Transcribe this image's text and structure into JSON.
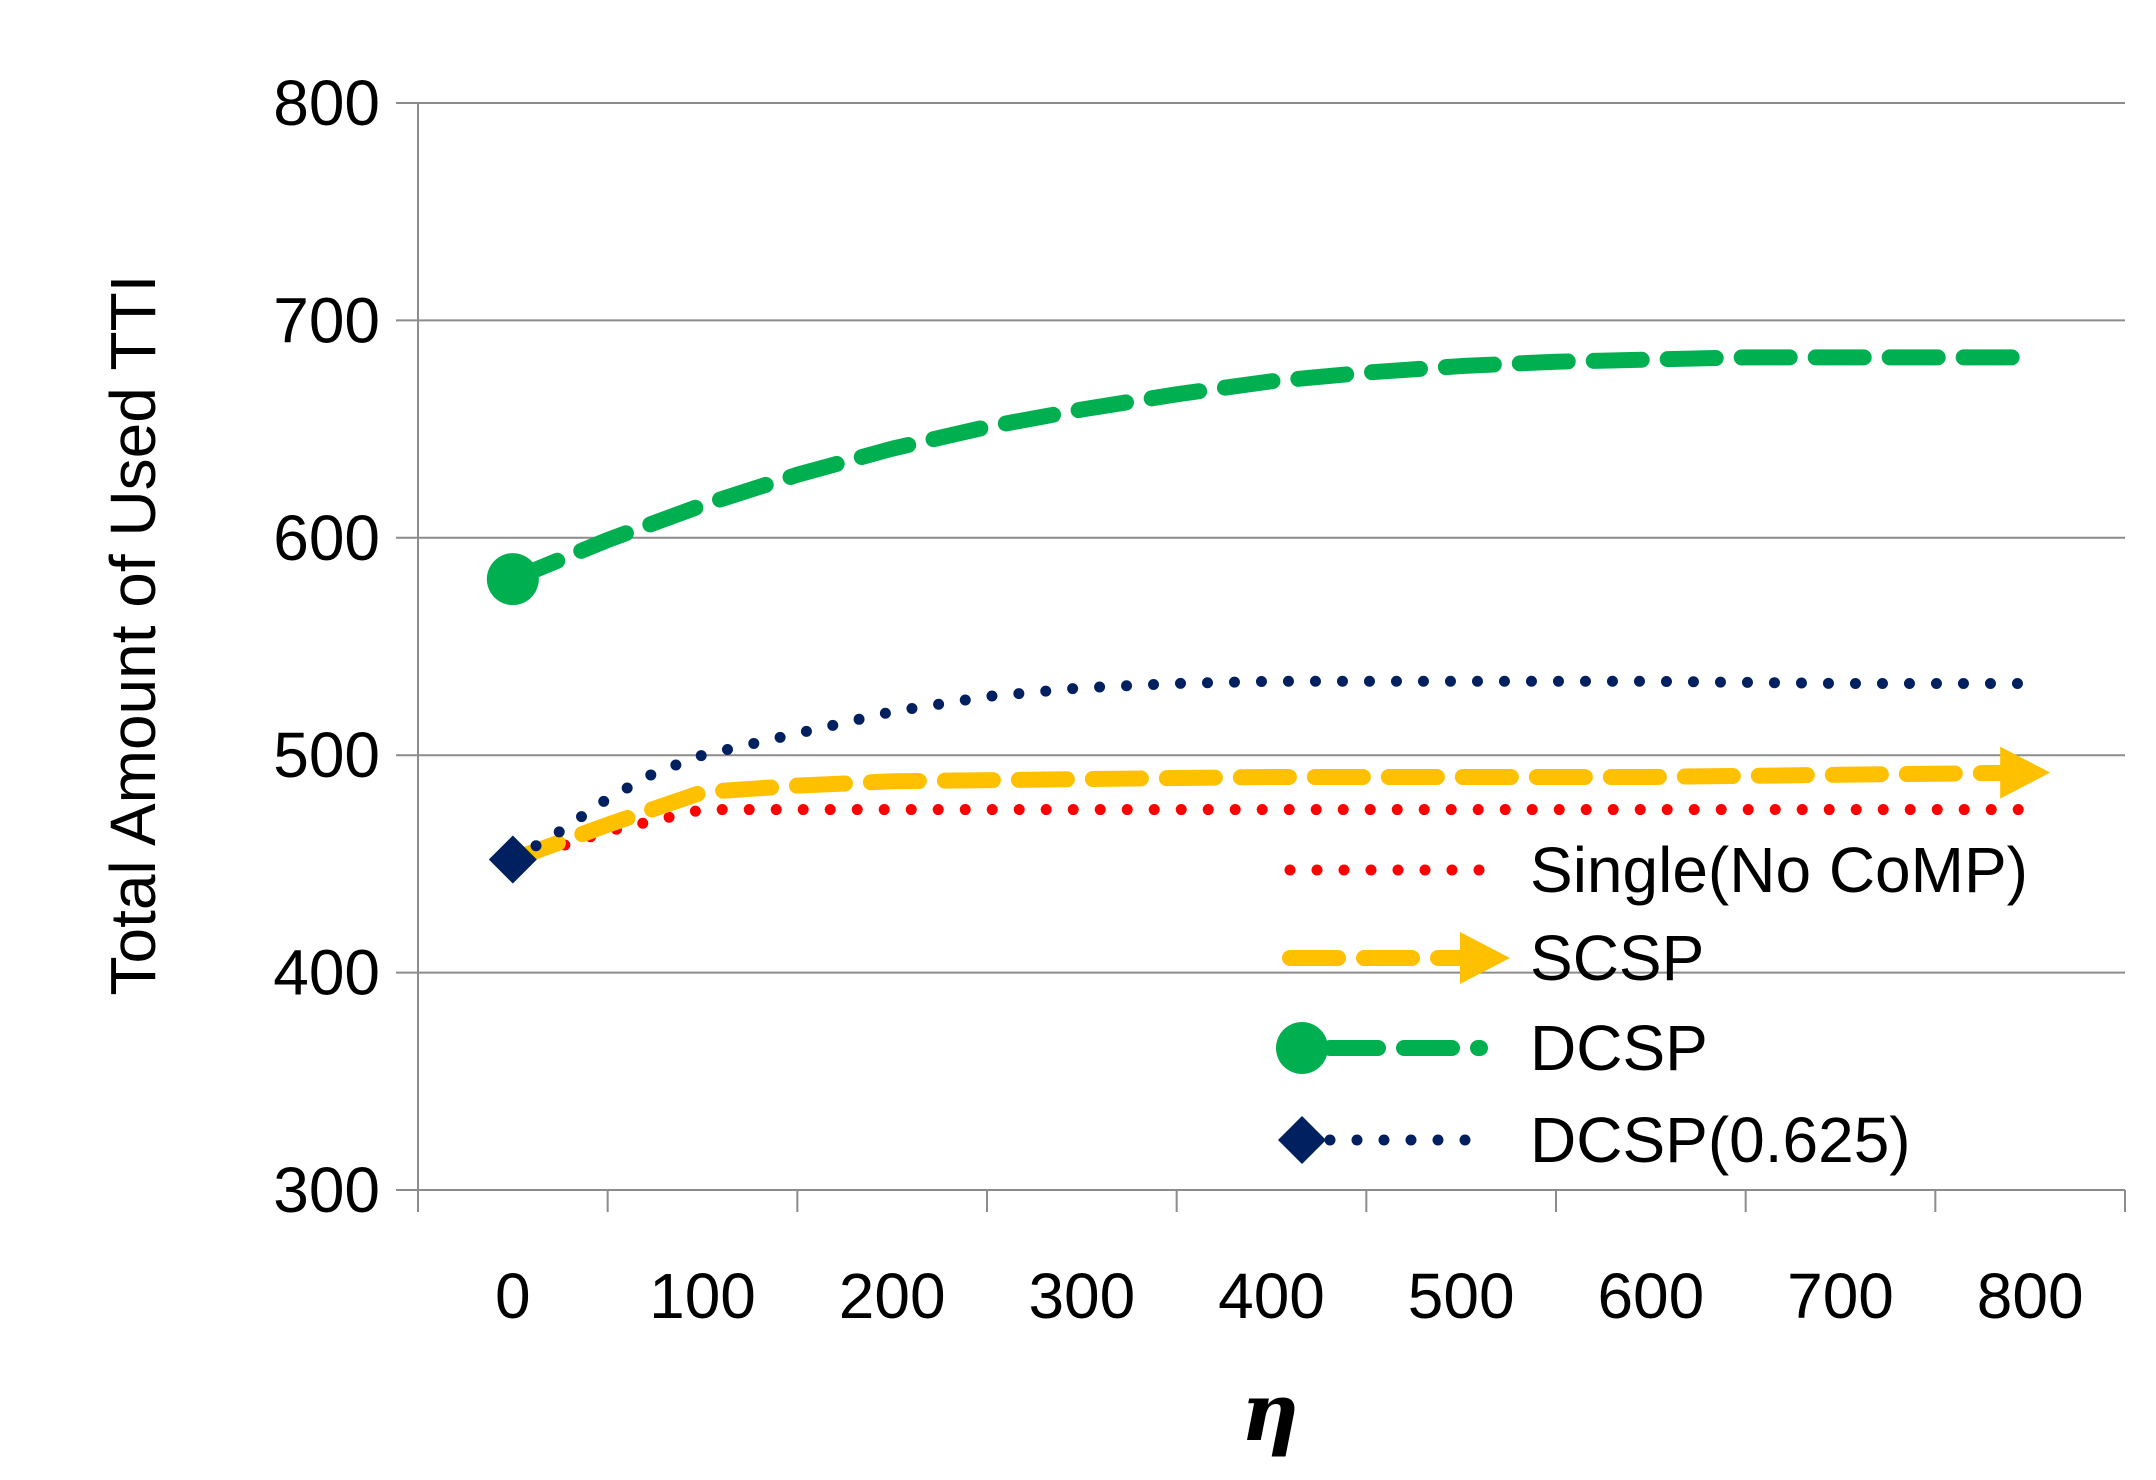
{
  "chart_data": {
    "type": "line",
    "title": "",
    "xlabel": "η",
    "ylabel": "Total Amount of Used TTI",
    "xlim": [
      -50,
      850
    ],
    "ylim": [
      300,
      800
    ],
    "x_ticks": [
      0,
      100,
      200,
      300,
      400,
      500,
      600,
      700,
      800
    ],
    "y_ticks": [
      300,
      400,
      500,
      600,
      700,
      800
    ],
    "grid": "horizontal",
    "legend_position": "bottom-right",
    "series": [
      {
        "name": "Single(No CoMP)",
        "color": "#ff0000",
        "style": "dotted",
        "marker": "none",
        "x": [
          0,
          25,
          50,
          75,
          100,
          150,
          200,
          300,
          400,
          500,
          600,
          700,
          800
        ],
        "y": [
          452,
          458,
          465,
          470,
          475,
          475,
          475,
          475,
          475,
          475,
          475,
          475,
          475
        ]
      },
      {
        "name": "SCSP",
        "color": "#ffc000",
        "style": "dashed",
        "marker": "arrow",
        "x": [
          0,
          50,
          100,
          150,
          200,
          300,
          400,
          500,
          600,
          700,
          800
        ],
        "y": [
          452,
          468,
          483,
          486,
          488,
          489,
          490,
          490,
          490,
          491,
          492
        ]
      },
      {
        "name": "DCSP",
        "color": "#00b050",
        "style": "dashed",
        "marker": "circle",
        "x": [
          0,
          50,
          100,
          150,
          200,
          250,
          300,
          350,
          400,
          450,
          500,
          550,
          600,
          650,
          700,
          750,
          800
        ],
        "y": [
          581,
          599,
          615,
          629,
          641,
          651,
          659,
          666,
          672,
          676,
          679,
          681,
          682,
          683,
          683,
          683,
          683
        ]
      },
      {
        "name": "DCSP(0.625)",
        "color": "#002060",
        "style": "dotted",
        "marker": "diamond",
        "x": [
          0,
          25,
          50,
          75,
          100,
          150,
          200,
          250,
          300,
          350,
          400,
          450,
          500,
          600,
          700,
          800
        ],
        "y": [
          452,
          465,
          480,
          492,
          500,
          510,
          520,
          527,
          531,
          533,
          534,
          534,
          534,
          534,
          533,
          533
        ]
      }
    ]
  }
}
